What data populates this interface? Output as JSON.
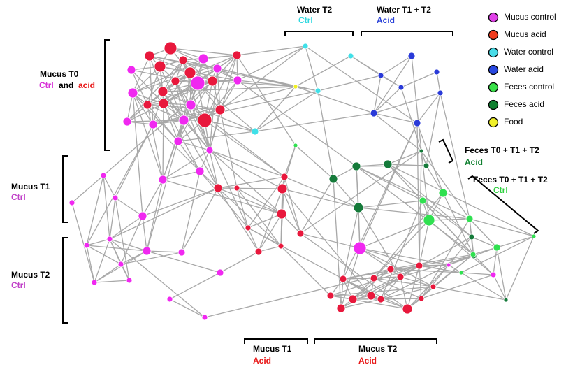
{
  "legend": [
    {
      "label": "Mucus control",
      "color": "#e040e8"
    },
    {
      "label": "Mucus acid",
      "color": "#f03c1e"
    },
    {
      "label": "Water control",
      "color": "#48dce8"
    },
    {
      "label": "Water acid",
      "color": "#2848e0"
    },
    {
      "label": "Feces control",
      "color": "#38e048"
    },
    {
      "label": "Feces acid",
      "color": "#108030"
    },
    {
      "label": "Food",
      "color": "#f0f028"
    }
  ],
  "groups": {
    "water_t2": {
      "title": "Water T2",
      "sub": "Ctrl"
    },
    "water_t1_t2": {
      "title": "Water T1 + T2",
      "sub": "Acid"
    },
    "mucus_t0": {
      "title": "Mucus T0",
      "sub_parts": [
        "Ctrl",
        "and",
        "acid"
      ]
    },
    "mucus_t1": {
      "title": "Mucus T1",
      "sub": "Ctrl"
    },
    "mucus_t2": {
      "title": "Mucus T2",
      "sub": "Ctrl"
    },
    "feces_acid": {
      "title": "Feces T0 + T1 + T2",
      "sub": "Acid"
    },
    "feces_ctrl": {
      "title": "Feces T0 + T1 + T2",
      "sub": "Ctrl"
    },
    "mucus_t1_acid": {
      "title": "Mucus T1",
      "sub": "Acid"
    },
    "mucus_t2_acid": {
      "title": "Mucus T2",
      "sub": "Acid"
    }
  }
}
